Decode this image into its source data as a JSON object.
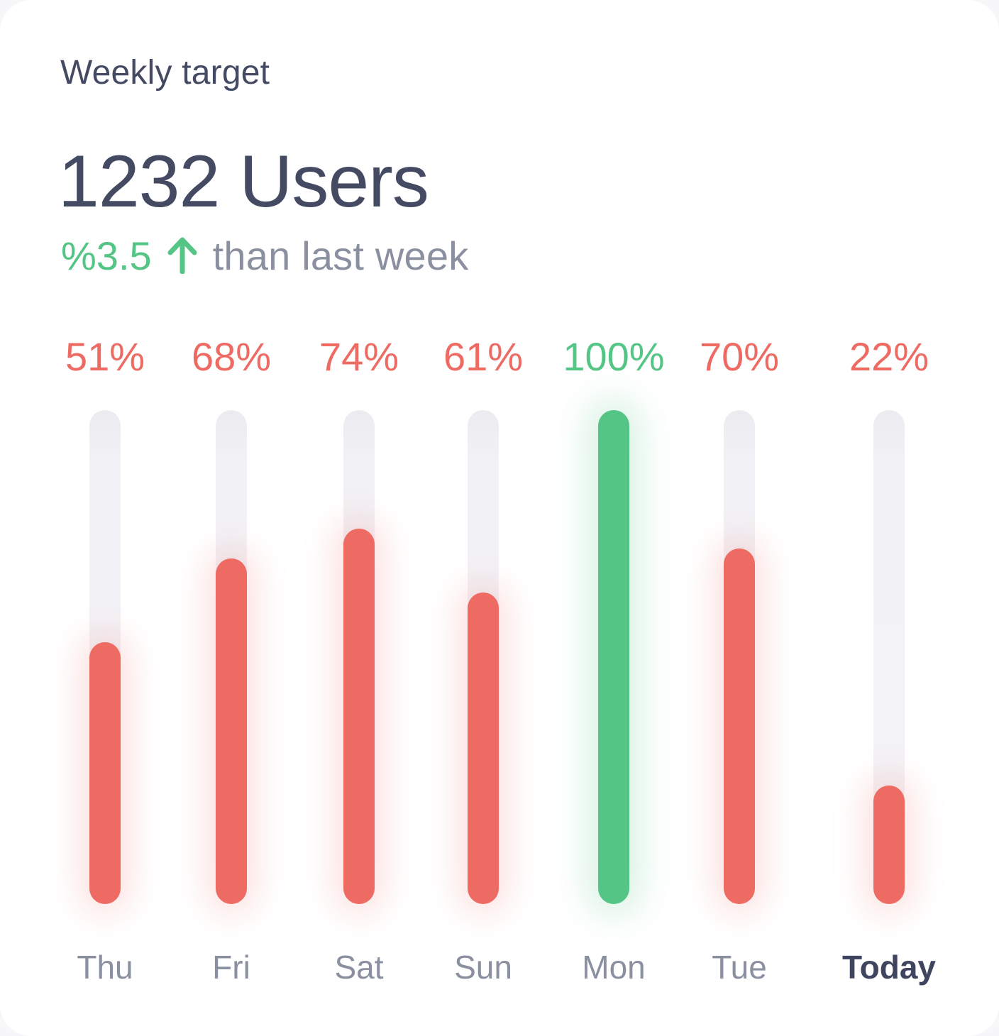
{
  "card": {
    "title": "Weekly target",
    "headline": "1232 Users",
    "delta_value": "%3.5",
    "delta_direction": "up",
    "delta_caption": "than last week"
  },
  "chart_data": {
    "type": "bar",
    "title": "Weekly target",
    "categories": [
      "Thu",
      "Fri",
      "Sat",
      "Sun",
      "Mon",
      "Tue",
      "Today"
    ],
    "values": [
      51,
      68,
      74,
      61,
      100,
      70,
      22
    ],
    "value_labels": [
      "51%",
      "68%",
      "74%",
      "61%",
      "100%",
      "70%",
      "22%"
    ],
    "unit": "percent of daily target",
    "ylim": [
      0,
      100
    ],
    "grid": false,
    "legend": "none",
    "orientation": "vertical",
    "highlight_index": 4,
    "today_index": 6,
    "colors": {
      "achieved": "#54c584",
      "missed": "#ee6b64",
      "track": "#f1f0f4"
    }
  },
  "colors": {
    "title_text": "#454a63",
    "muted_text": "#8b90a0",
    "positive": "#54c584",
    "negative": "#ee6b64",
    "today_label": "#3f455e",
    "background": "#ffffff"
  }
}
